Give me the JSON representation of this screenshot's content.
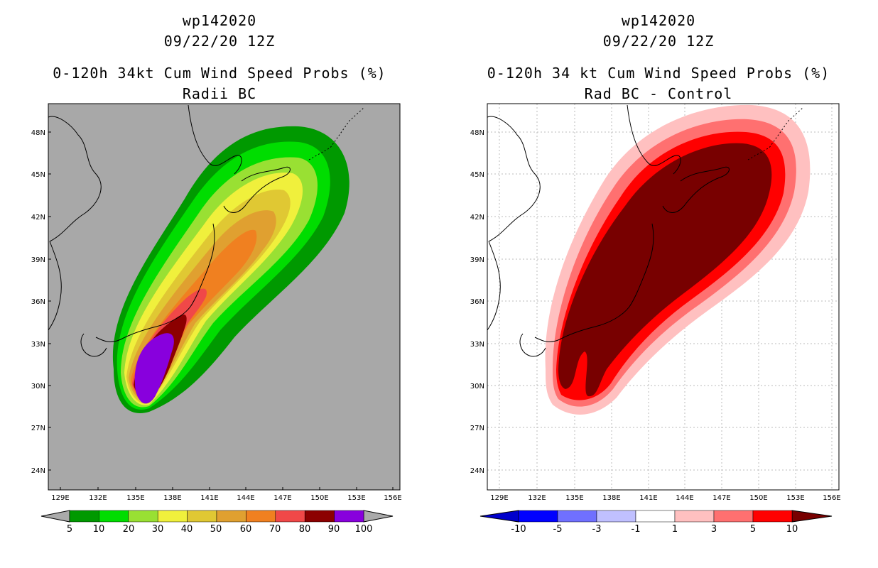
{
  "panels": [
    {
      "storm_id": "wp142020",
      "date": "09/22/20 12Z",
      "title": "0-120h 34kt Cum Wind Speed Probs (%)",
      "subtitle": "Radii BC",
      "background": "#a8a8a8",
      "lat_labels": [
        "48N",
        "45N",
        "42N",
        "39N",
        "36N",
        "33N",
        "30N",
        "27N",
        "24N"
      ],
      "lon_labels": [
        "129E",
        "132E",
        "135E",
        "138E",
        "141E",
        "144E",
        "147E",
        "150E",
        "153E",
        "156E"
      ],
      "colorbar": {
        "colors": [
          "#009900",
          "#00dd00",
          "#99e033",
          "#f0f03c",
          "#e0c833",
          "#e0a030",
          "#f08020",
          "#f04848",
          "#8c0000",
          "#8800dd"
        ],
        "labels": [
          "5",
          "10",
          "20",
          "30",
          "40",
          "50",
          "60",
          "70",
          "80",
          "90",
          "100"
        ]
      }
    },
    {
      "storm_id": "wp142020",
      "date": "09/22/20 12Z",
      "title": "0-120h 34 kt Cum Wind Speed Probs (%)",
      "subtitle": "Rad BC - Control",
      "background": "#ffffff",
      "lat_labels": [
        "48N",
        "45N",
        "42N",
        "39N",
        "36N",
        "33N",
        "30N",
        "27N",
        "24N"
      ],
      "lon_labels": [
        "129E",
        "132E",
        "135E",
        "138E",
        "141E",
        "144E",
        "147E",
        "150E",
        "153E",
        "156E"
      ],
      "colorbar": {
        "colors": [
          "#0000cc",
          "#0000ff",
          "#7070ff",
          "#c0c0ff",
          "#ffffff",
          "#ffc0c0",
          "#ff7070",
          "#ff0000",
          "#780000"
        ],
        "labels": [
          "-10",
          "-5",
          "-3",
          "-1",
          "1",
          "3",
          "5",
          "10"
        ]
      }
    }
  ]
}
